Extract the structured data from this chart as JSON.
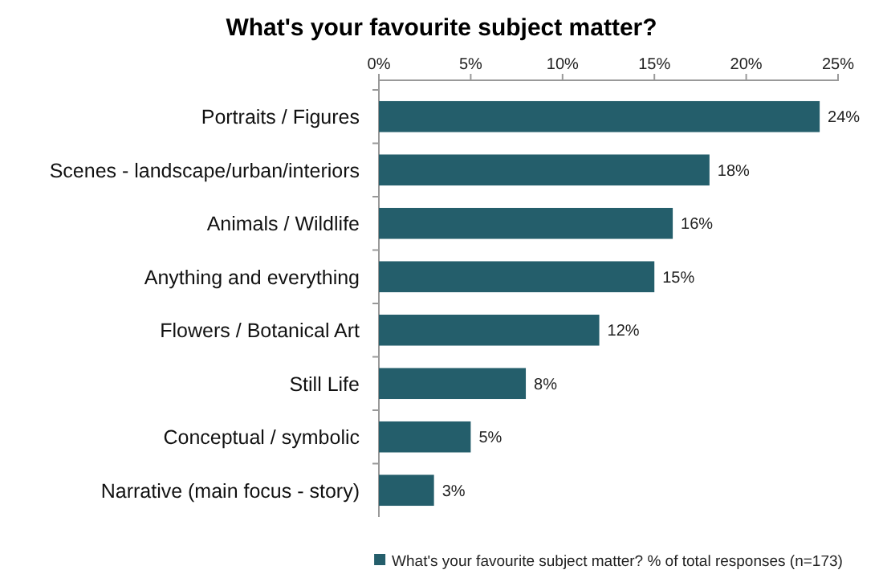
{
  "chart_data": {
    "type": "bar",
    "orientation": "horizontal",
    "title": "What's your favourite subject matter?",
    "categories": [
      "Portraits / Figures",
      "Scenes - landscape/urban/interiors",
      "Animals / Wildlife",
      "Anything and everything",
      "Flowers / Botanical Art",
      "Still Life",
      "Conceptual / symbolic",
      "Narrative (main focus - story)"
    ],
    "series": [
      {
        "name": "What's your favourite subject matter? % of total responses (n=173)",
        "color": "#245e6b",
        "values": [
          24,
          18,
          16,
          15,
          12,
          8,
          5,
          3
        ],
        "value_labels": [
          "24%",
          "18%",
          "16%",
          "15%",
          "12%",
          "8%",
          "5%",
          "3%"
        ]
      }
    ],
    "xlim": [
      0,
      25
    ],
    "xticks": [
      {
        "value": 0,
        "label": "0%"
      },
      {
        "value": 5,
        "label": "5%"
      },
      {
        "value": 10,
        "label": "10%"
      },
      {
        "value": 15,
        "label": "15%"
      },
      {
        "value": 20,
        "label": "20%"
      },
      {
        "value": 25,
        "label": "25%"
      }
    ],
    "grid": false,
    "legend": "bottom"
  }
}
